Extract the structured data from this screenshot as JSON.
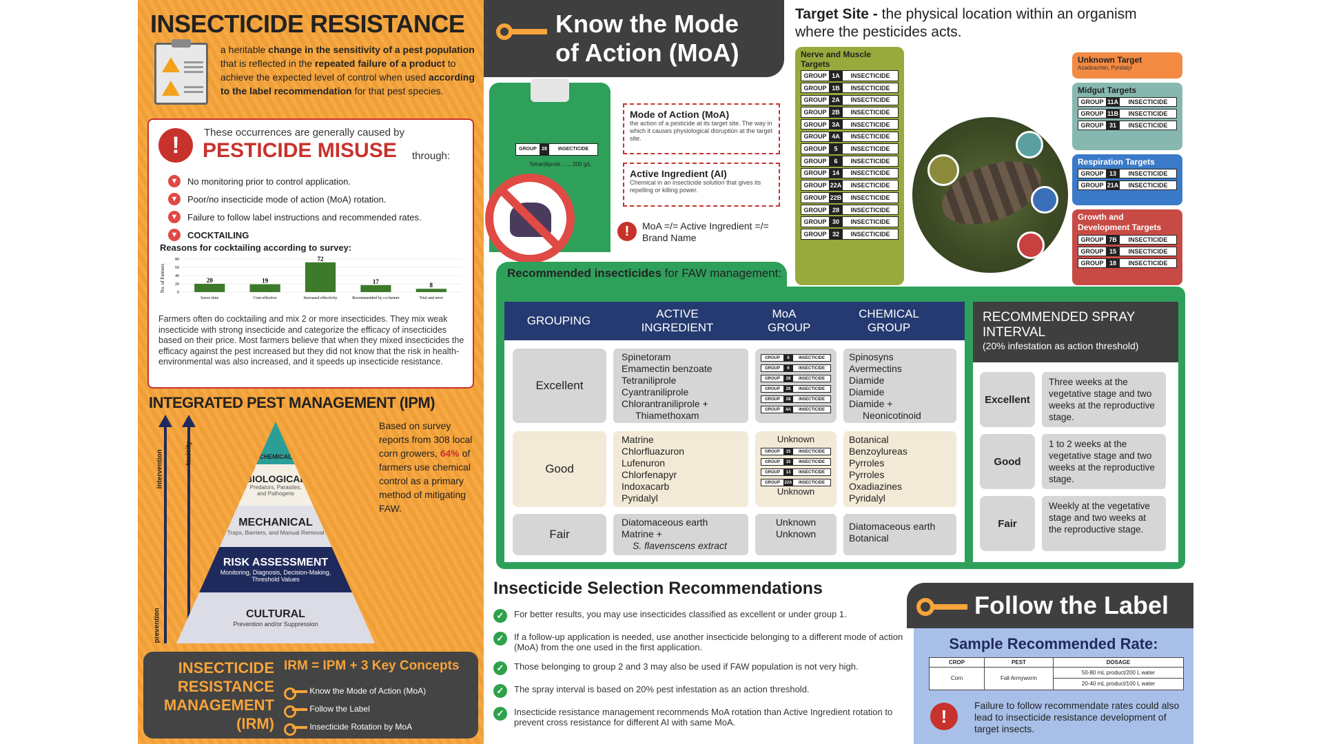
{
  "left": {
    "title": "INSECTICIDE RESISTANCE",
    "definition_parts": [
      "a heritable ",
      "change in the sensitivity of a pest population",
      " that is reflected in the ",
      "repeated failure of a product",
      " to achieve the expected level of control when used ",
      "according to the label recommendation",
      " for that pest species."
    ],
    "misuse_intro": "These occurrences are generally caused by",
    "misuse_title": "PESTICIDE MISUSE",
    "misuse_through": "through:",
    "misuse_items": [
      "No monitoring prior to control application.",
      "Poor/no insecticide mode of action (MoA) rotation.",
      "Failure to follow label instructions and recommended rates.",
      "COCKTAILING"
    ],
    "survey_title": "Reasons for cocktailing according to survey:",
    "cocktail_text": "Farmers often do cocktailing and mix 2 or more insecticides. They mix weak insecticide with strong insecticide and categorize the efficacy of insecticides based on their price. Most farmers believe that when they mixed insecticides the efficacy against the pest increased but they did not know that the risk in health-environmental was also increased, and it speeds up insecticide resistance.",
    "ipm_title": "INTEGRATED PEST MANAGEMENT (IPM)",
    "arrow_intervention": "intervention",
    "arrow_toxicity": "toxicity",
    "arrow_prevention": "prevention",
    "pyramid": [
      {
        "title": "CHEMICAL",
        "sub": ""
      },
      {
        "title": "BIOLOGICAL",
        "sub": "Predators, Parasites, and Pathogens"
      },
      {
        "title": "MECHANICAL",
        "sub": "Traps, Barriers, and Manual Removal"
      },
      {
        "title": "RISK ASSESSMENT",
        "sub": "Monitoring, Diagnosis, Decision-Making, Threshold Values"
      },
      {
        "title": "CULTURAL",
        "sub": "Prevention and/or Suppression"
      }
    ],
    "ipm_text_a": "Based on survey reports from 308 local corn growers, ",
    "ipm_pct": "64%",
    "ipm_text_b": " of farmers use chemical control as a primary method of mitigating FAW.",
    "irm_title": [
      "INSECTICIDE",
      "RESISTANCE",
      "MANAGEMENT",
      "(IRM)"
    ],
    "irm_eq": "IRM = IPM + 3 Key Concepts",
    "irm_items": [
      "Know the Mode of Action (MoA)",
      "Follow the Label",
      "Insecticide Rotation by MoA"
    ]
  },
  "chart_data": {
    "type": "bar",
    "categories": [
      "Saves time",
      "Cost-effective",
      "Increased effectivity",
      "Recommended by co-farmer",
      "Trial and error"
    ],
    "values": [
      20,
      19,
      72,
      17,
      8
    ],
    "ylabel": "No. of Farmers",
    "yticks": [
      0,
      20,
      40,
      60,
      80
    ],
    "ylim": [
      0,
      80
    ],
    "bar_color": "#3d7a2a"
  },
  "moa": {
    "title": "Know the Mode of Action (MoA)",
    "bottle_group": "GROUP",
    "bottle_num": "28",
    "bottle_ins": "INSECTICIDE",
    "bottle_label": "Tetraniliprole ...... 200 g/L",
    "moa_box_title": "Mode of Action (MoA)",
    "moa_box_text": "the action of a pesticide at its target site. The way in which it causes physiological disruption at the target site.",
    "ai_box_title": "Active Ingredient (AI)",
    "ai_box_text": "Chemical in an insecticide solution that gives its repelling or killing power.",
    "note": "MoA =/= Active Ingredient =/= Brand Name"
  },
  "target": {
    "title_bold": "Target Site - ",
    "title_rest": "the physical location within an organism where the pesticides acts.",
    "nerve_title": "Nerve and Muscle Targets",
    "nerve_groups": [
      "1A",
      "1B",
      "2A",
      "2B",
      "3A",
      "4A",
      "5",
      "6",
      "14",
      "22A",
      "22B",
      "28",
      "30",
      "32"
    ],
    "group_word": "GROUP",
    "ins_word": "INSECTICIDE",
    "unknown_title": "Unknown Target",
    "unknown_sub": "Azadirachtin, Pyridalyl",
    "midgut_title": "Midgut Targets",
    "midgut_groups": [
      "11A",
      "11B",
      "31"
    ],
    "resp_title": "Respiration Targets",
    "resp_groups": [
      "13",
      "21A"
    ],
    "growth_title": "Growth and Development Targets",
    "growth_groups": [
      "7B",
      "15",
      "18"
    ]
  },
  "rec": {
    "title_bold": "Recommended insecticides",
    "title_rest": " for FAW management:",
    "headers": [
      "GROUPING",
      "ACTIVE INGREDIENT",
      "MoA GROUP",
      "CHEMICAL GROUP"
    ],
    "rows": [
      {
        "grade": "Excellent",
        "ai": [
          "Spinetoram",
          "Emamectin benzoate",
          "Tetraniliprole",
          "Cyantraniliprole",
          "Chlorantraniliprole +",
          "Thiamethoxam"
        ],
        "moa": [
          "5",
          "6",
          "28",
          "28",
          "28|4A"
        ],
        "chem": [
          "Spinosyns",
          "Avermectins",
          "Diamide",
          "Diamide",
          "Diamide +",
          "Neonicotinoid"
        ]
      },
      {
        "grade": "Good",
        "ai": [
          "Matrine",
          "Chlorfluazuron",
          "Lufenuron",
          "Chlorfenapyr",
          "Indoxacarb",
          "Pyridalyl"
        ],
        "moa": [
          "Unknown",
          "15",
          "15",
          "13",
          "22A",
          "Unknown"
        ],
        "chem": [
          "Botanical",
          "Benzoylureas",
          "Pyrroles",
          "Pyrroles",
          "Oxadiazines",
          "Pyridalyl"
        ]
      },
      {
        "grade": "Fair",
        "ai": [
          "Diatomaceous earth",
          "Matrine +",
          "S. flavenscens extract"
        ],
        "moa": [
          "Unknown",
          "Unknown"
        ],
        "chem": [
          "Diatomaceous earth",
          "Botanical"
        ]
      }
    ],
    "spray_title": "RECOMMENDED SPRAY INTERVAL",
    "spray_sub": "(20% infestation as action threshold)",
    "spray_rows": [
      {
        "grade": "Excellent",
        "text": "Three weeks at the vegetative stage and two weeks at the reproductive stage."
      },
      {
        "grade": "Good",
        "text": "1 to 2 weeks at the vegetative stage and two weeks at the reproductive stage."
      },
      {
        "grade": "Fair",
        "text": "Weekly at the vegetative stage and two weeks at the reproductive stage."
      }
    ]
  },
  "selection": {
    "title": "Insecticide Selection Recommendations",
    "items": [
      "For better results, you may use insecticides classified as excellent or under group 1.",
      "If a follow-up application is needed, use another insecticide belonging to a different mode of action (MoA) from the one used in the first application.",
      "Those belonging to group 2 and 3 may also be used if FAW population is not very high.",
      "The spray interval is based on 20% pest infestation as an action threshold.",
      "Insecticide resistance management recommends MoA rotation than Active Ingredient rotation to prevent cross resistance for different AI with same MoA."
    ]
  },
  "label": {
    "title": "Follow the Label",
    "rate_title": "Sample Recommended Rate:",
    "headers": [
      "CROP",
      "PEST",
      "DOSAGE"
    ],
    "crop": "Corn",
    "pest": "Fall Armyworm",
    "dosage": [
      "50-80 mL product/200 L water",
      "20-40 mL product/100 L water"
    ],
    "warning": "Failure to follow recommendate rates could also lead to insecticide resistance development of target insects."
  }
}
